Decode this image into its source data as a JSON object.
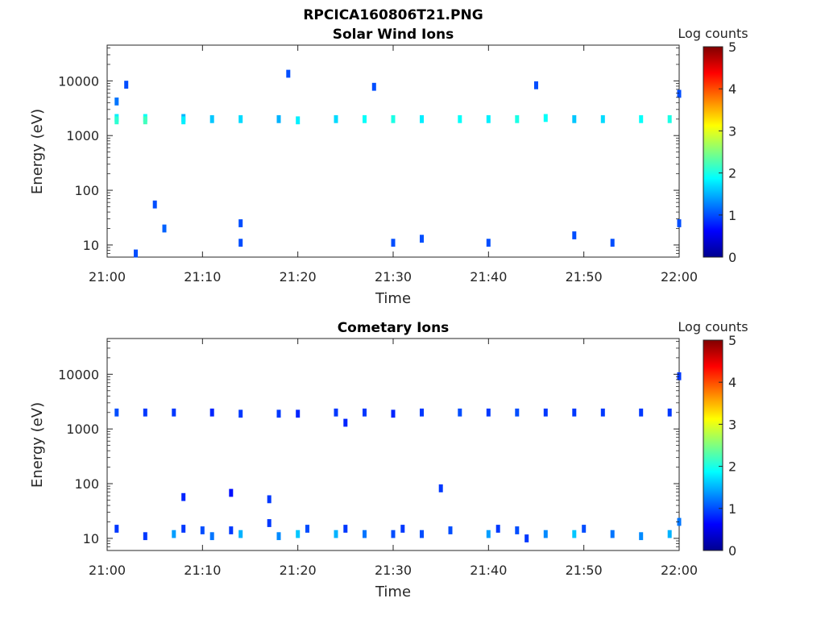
{
  "figure_title": "RPCICA160806T21.PNG",
  "colors": {
    "colormap": "jet",
    "axis": "#262626",
    "background": "#ffffff"
  },
  "chart_data": [
    {
      "type": "heatmap",
      "title": "Solar Wind Ions",
      "xlabel": "Time",
      "ylabel": "Energy (eV)",
      "x_ticks": [
        "21:00",
        "21:10",
        "21:20",
        "21:30",
        "21:40",
        "21:50",
        "22:00"
      ],
      "xlim": [
        "21:00",
        "22:00"
      ],
      "y_scale": "log",
      "y_ticks": [
        "10",
        "100",
        "1000",
        "10000"
      ],
      "ylim": [
        6,
        45000
      ],
      "colorbar": {
        "label": "Log counts",
        "ticks": [
          "0",
          "1",
          "2",
          "3",
          "4",
          "5"
        ],
        "range": [
          0,
          5
        ]
      },
      "grid": false,
      "cells": [
        [
          "21:01",
          2100,
          1.8
        ],
        [
          "21:01",
          1900,
          2.1
        ],
        [
          "21:01",
          4200,
          1.2
        ],
        [
          "21:04",
          2100,
          1.9
        ],
        [
          "21:04",
          1900,
          2.2
        ],
        [
          "21:08",
          2100,
          1.5
        ],
        [
          "21:08",
          1900,
          1.8
        ],
        [
          "21:11",
          2000,
          1.6
        ],
        [
          "21:14",
          2000,
          1.7
        ],
        [
          "21:18",
          2000,
          1.5
        ],
        [
          "21:20",
          1900,
          1.8
        ],
        [
          "21:24",
          2000,
          1.7
        ],
        [
          "21:27",
          2000,
          1.9
        ],
        [
          "21:30",
          2000,
          2.0
        ],
        [
          "21:33",
          2000,
          1.8
        ],
        [
          "21:37",
          2000,
          1.9
        ],
        [
          "21:40",
          2000,
          1.8
        ],
        [
          "21:43",
          2000,
          2.0
        ],
        [
          "21:46",
          2100,
          1.9
        ],
        [
          "21:49",
          2000,
          1.6
        ],
        [
          "21:52",
          2000,
          1.7
        ],
        [
          "21:56",
          2000,
          1.9
        ],
        [
          "21:59",
          2000,
          2.0
        ],
        [
          "21:05",
          55,
          1.0
        ],
        [
          "21:06",
          20,
          1.1
        ],
        [
          "21:14",
          11,
          1.0
        ],
        [
          "21:14",
          25,
          1.0
        ],
        [
          "21:19",
          13500,
          1.0
        ],
        [
          "21:28",
          7800,
          1.0
        ],
        [
          "21:30",
          11,
          1.0
        ],
        [
          "21:33",
          13,
          1.0
        ],
        [
          "21:40",
          11,
          1.0
        ],
        [
          "21:45",
          8300,
          1.0
        ],
        [
          "21:49",
          15,
          1.0
        ],
        [
          "21:53",
          11,
          1.0
        ],
        [
          "21:02",
          8500,
          1.0
        ],
        [
          "21:03",
          7,
          1.0
        ],
        [
          "22:00",
          25,
          1.0
        ],
        [
          "22:00",
          5800,
          1.0
        ]
      ]
    },
    {
      "type": "heatmap",
      "title": "Cometary Ions",
      "xlabel": "Time",
      "ylabel": "Energy (eV)",
      "x_ticks": [
        "21:00",
        "21:10",
        "21:20",
        "21:30",
        "21:40",
        "21:50",
        "22:00"
      ],
      "xlim": [
        "21:00",
        "22:00"
      ],
      "y_scale": "log",
      "y_ticks": [
        "10",
        "100",
        "1000",
        "10000"
      ],
      "ylim": [
        6,
        45000
      ],
      "colorbar": {
        "label": "Log counts",
        "ticks": [
          "0",
          "1",
          "2",
          "3",
          "4",
          "5"
        ],
        "range": [
          0,
          5
        ]
      },
      "grid": false,
      "cells": [
        [
          "21:01",
          2000,
          1.0
        ],
        [
          "21:04",
          2000,
          0.9
        ],
        [
          "21:07",
          2000,
          0.9
        ],
        [
          "21:11",
          2000,
          0.8
        ],
        [
          "21:14",
          1900,
          0.9
        ],
        [
          "21:18",
          1900,
          0.9
        ],
        [
          "21:20",
          1900,
          0.8
        ],
        [
          "21:24",
          2000,
          0.9
        ],
        [
          "21:27",
          2000,
          0.9
        ],
        [
          "21:30",
          1900,
          0.8
        ],
        [
          "21:33",
          2000,
          0.9
        ],
        [
          "21:37",
          2000,
          1.0
        ],
        [
          "21:40",
          2000,
          0.9
        ],
        [
          "21:43",
          2000,
          1.0
        ],
        [
          "21:46",
          2000,
          0.9
        ],
        [
          "21:49",
          2000,
          0.9
        ],
        [
          "21:52",
          2000,
          0.9
        ],
        [
          "21:56",
          2000,
          0.9
        ],
        [
          "21:59",
          2000,
          0.9
        ],
        [
          "21:25",
          1300,
          0.8
        ],
        [
          "22:00",
          9200,
          0.9
        ],
        [
          "21:08",
          57,
          0.8
        ],
        [
          "21:13",
          68,
          0.7
        ],
        [
          "21:17",
          52,
          0.9
        ],
        [
          "21:35",
          82,
          0.9
        ],
        [
          "21:01",
          15,
          0.9
        ],
        [
          "21:04",
          11,
          0.9
        ],
        [
          "21:07",
          12,
          1.4
        ],
        [
          "21:08",
          15,
          0.9
        ],
        [
          "21:10",
          14,
          1.0
        ],
        [
          "21:11",
          11,
          1.2
        ],
        [
          "21:13",
          14,
          0.9
        ],
        [
          "21:14",
          12,
          1.5
        ],
        [
          "21:17",
          19,
          0.9
        ],
        [
          "21:18",
          11,
          1.3
        ],
        [
          "21:20",
          12,
          1.6
        ],
        [
          "21:21",
          15,
          1.0
        ],
        [
          "21:24",
          12,
          1.5
        ],
        [
          "21:25",
          15,
          0.9
        ],
        [
          "21:27",
          12,
          1.2
        ],
        [
          "21:30",
          12,
          1.0
        ],
        [
          "21:31",
          15,
          0.9
        ],
        [
          "21:33",
          12,
          1.0
        ],
        [
          "21:36",
          14,
          1.0
        ],
        [
          "21:40",
          12,
          1.4
        ],
        [
          "21:41",
          15,
          0.9
        ],
        [
          "21:43",
          14,
          1.0
        ],
        [
          "21:44",
          10,
          0.9
        ],
        [
          "21:46",
          12,
          1.3
        ],
        [
          "21:49",
          12,
          1.6
        ],
        [
          "21:50",
          15,
          1.0
        ],
        [
          "21:53",
          12,
          1.2
        ],
        [
          "21:56",
          11,
          1.3
        ],
        [
          "21:59",
          12,
          1.5
        ],
        [
          "22:00",
          20,
          1.2
        ]
      ]
    }
  ]
}
